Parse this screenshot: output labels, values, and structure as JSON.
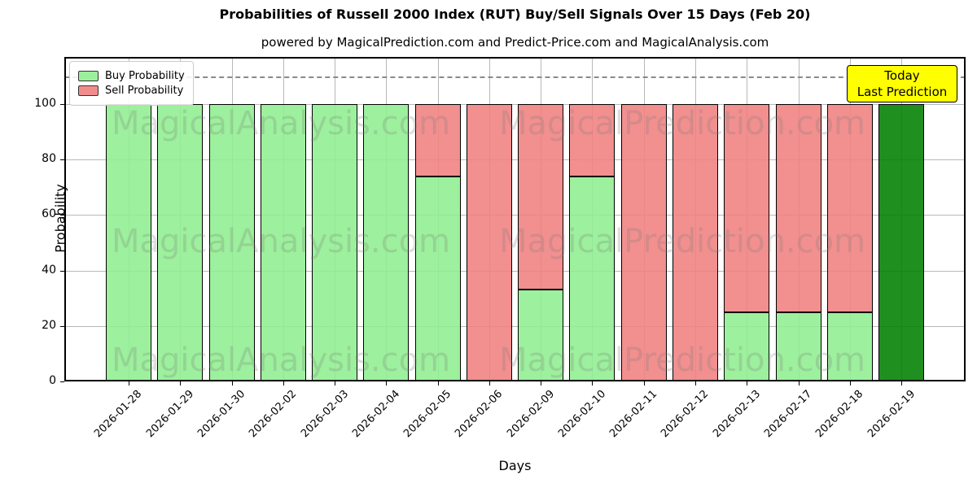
{
  "title": "Probabilities of Russell 2000 Index (RUT) Buy/Sell Signals Over 15 Days (Feb 20)",
  "subtitle": "powered by MagicalPrediction.com and Predict-Price.com and MagicalAnalysis.com",
  "annotation": {
    "lines": [
      "Today",
      "Last Prediction"
    ],
    "bg_color": "#FFFF00"
  },
  "watermarks": [
    "MagicalAnalysis.com",
    "MagicalPrediction.com"
  ],
  "chart_data": {
    "type": "bar",
    "stacked": true,
    "title": "Probabilities of Russell 2000 Index (RUT) Buy/Sell Signals Over 15 Days (Feb 20)",
    "xlabel": "Days",
    "ylabel": "Probability",
    "categories": [
      "2026-01-28",
      "2026-01-29",
      "2026-01-30",
      "2026-02-02",
      "2026-02-03",
      "2026-02-04",
      "2026-02-05",
      "2026-02-06",
      "2026-02-09",
      "2026-02-10",
      "2026-02-11",
      "2026-02-12",
      "2026-02-13",
      "2026-02-17",
      "2026-02-18",
      "2026-02-19"
    ],
    "series": [
      {
        "name": "Buy Probability",
        "color": "#90EE90",
        "in_legend": true,
        "values": [
          100,
          100,
          100,
          100,
          100,
          100,
          74,
          0,
          33,
          74,
          0,
          0,
          25,
          25,
          25,
          0
        ]
      },
      {
        "name": "Sell Probability",
        "color": "#F08080",
        "in_legend": true,
        "values": [
          0,
          0,
          0,
          0,
          0,
          0,
          26,
          100,
          67,
          26,
          100,
          100,
          75,
          75,
          75,
          0
        ]
      },
      {
        "name": "Today Last Prediction",
        "color": "#008000",
        "in_legend": false,
        "values": [
          0,
          0,
          0,
          0,
          0,
          0,
          0,
          0,
          0,
          0,
          0,
          0,
          0,
          0,
          0,
          100
        ]
      }
    ],
    "ylim": [
      0,
      117
    ],
    "yticks": [
      0,
      20,
      40,
      60,
      80,
      100
    ],
    "dashed_line_y": 110,
    "grid": true,
    "legend_position": "upper left",
    "grid_color": "#b8b8b8",
    "dashed_line_color": "#8a8a8a"
  }
}
